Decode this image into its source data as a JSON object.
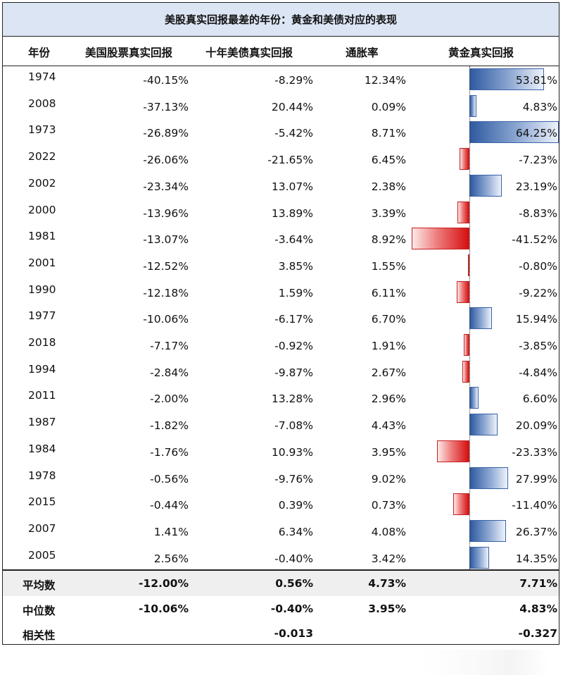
{
  "chart_data": {
    "type": "table",
    "title": "美股真实回报最差的年份：黄金和美债对应的表现",
    "columns": [
      "年份",
      "美国股票真实回报",
      "十年美债真实回报",
      "通胀率",
      "黄金真实回报"
    ],
    "rows": [
      {
        "year": "1974",
        "stock": "-40.15%",
        "bond": "-8.29%",
        "inflation": "12.34%",
        "gold": "53.81%",
        "gold_value": 53.81
      },
      {
        "year": "2008",
        "stock": "-37.13%",
        "bond": "20.44%",
        "inflation": "0.09%",
        "gold": "4.83%",
        "gold_value": 4.83
      },
      {
        "year": "1973",
        "stock": "-26.89%",
        "bond": "-5.42%",
        "inflation": "8.71%",
        "gold": "64.25%",
        "gold_value": 64.25
      },
      {
        "year": "2022",
        "stock": "-26.06%",
        "bond": "-21.65%",
        "inflation": "6.45%",
        "gold": "-7.23%",
        "gold_value": -7.23
      },
      {
        "year": "2002",
        "stock": "-23.34%",
        "bond": "13.07%",
        "inflation": "2.38%",
        "gold": "23.19%",
        "gold_value": 23.19
      },
      {
        "year": "2000",
        "stock": "-13.96%",
        "bond": "13.89%",
        "inflation": "3.39%",
        "gold": "-8.83%",
        "gold_value": -8.83
      },
      {
        "year": "1981",
        "stock": "-13.07%",
        "bond": "-3.64%",
        "inflation": "8.92%",
        "gold": "-41.52%",
        "gold_value": -41.52
      },
      {
        "year": "2001",
        "stock": "-12.52%",
        "bond": "3.85%",
        "inflation": "1.55%",
        "gold": "-0.80%",
        "gold_value": -0.8
      },
      {
        "year": "1990",
        "stock": "-12.18%",
        "bond": "1.59%",
        "inflation": "6.11%",
        "gold": "-9.22%",
        "gold_value": -9.22
      },
      {
        "year": "1977",
        "stock": "-10.06%",
        "bond": "-6.17%",
        "inflation": "6.70%",
        "gold": "15.94%",
        "gold_value": 15.94
      },
      {
        "year": "2018",
        "stock": "-7.17%",
        "bond": "-0.92%",
        "inflation": "1.91%",
        "gold": "-3.85%",
        "gold_value": -3.85
      },
      {
        "year": "1994",
        "stock": "-2.84%",
        "bond": "-9.87%",
        "inflation": "2.67%",
        "gold": "-4.84%",
        "gold_value": -4.84
      },
      {
        "year": "2011",
        "stock": "-2.00%",
        "bond": "13.28%",
        "inflation": "2.96%",
        "gold": "6.60%",
        "gold_value": 6.6
      },
      {
        "year": "1987",
        "stock": "-1.82%",
        "bond": "-7.08%",
        "inflation": "4.43%",
        "gold": "20.09%",
        "gold_value": 20.09
      },
      {
        "year": "1984",
        "stock": "-1.76%",
        "bond": "10.93%",
        "inflation": "3.95%",
        "gold": "-23.33%",
        "gold_value": -23.33
      },
      {
        "year": "1978",
        "stock": "-0.56%",
        "bond": "-9.76%",
        "inflation": "9.02%",
        "gold": "27.99%",
        "gold_value": 27.99
      },
      {
        "year": "2015",
        "stock": "-0.44%",
        "bond": "0.39%",
        "inflation": "0.73%",
        "gold": "-11.40%",
        "gold_value": -11.4
      },
      {
        "year": "2007",
        "stock": "1.41%",
        "bond": "6.34%",
        "inflation": "4.08%",
        "gold": "26.37%",
        "gold_value": 26.37
      },
      {
        "year": "2005",
        "stock": "2.56%",
        "bond": "-0.40%",
        "inflation": "3.42%",
        "gold": "14.35%",
        "gold_value": 14.35
      }
    ],
    "summary": [
      {
        "label": "平均数",
        "stock": "-12.00%",
        "bond": "0.56%",
        "inflation": "4.73%",
        "gold": "7.71%"
      },
      {
        "label": "中位数",
        "stock": "-10.06%",
        "bond": "-0.40%",
        "inflation": "3.95%",
        "gold": "4.83%"
      },
      {
        "label": "相关性",
        "stock": "",
        "bond": "-0.013",
        "inflation": "",
        "gold": "-0.327"
      }
    ],
    "gold_bar_range": [
      -41.52,
      64.25
    ],
    "colors": {
      "positive": "#2e5aa0",
      "negative": "#d40f0f",
      "title_bg": "#dbe5f4",
      "summary_shade": "#efefef"
    }
  }
}
